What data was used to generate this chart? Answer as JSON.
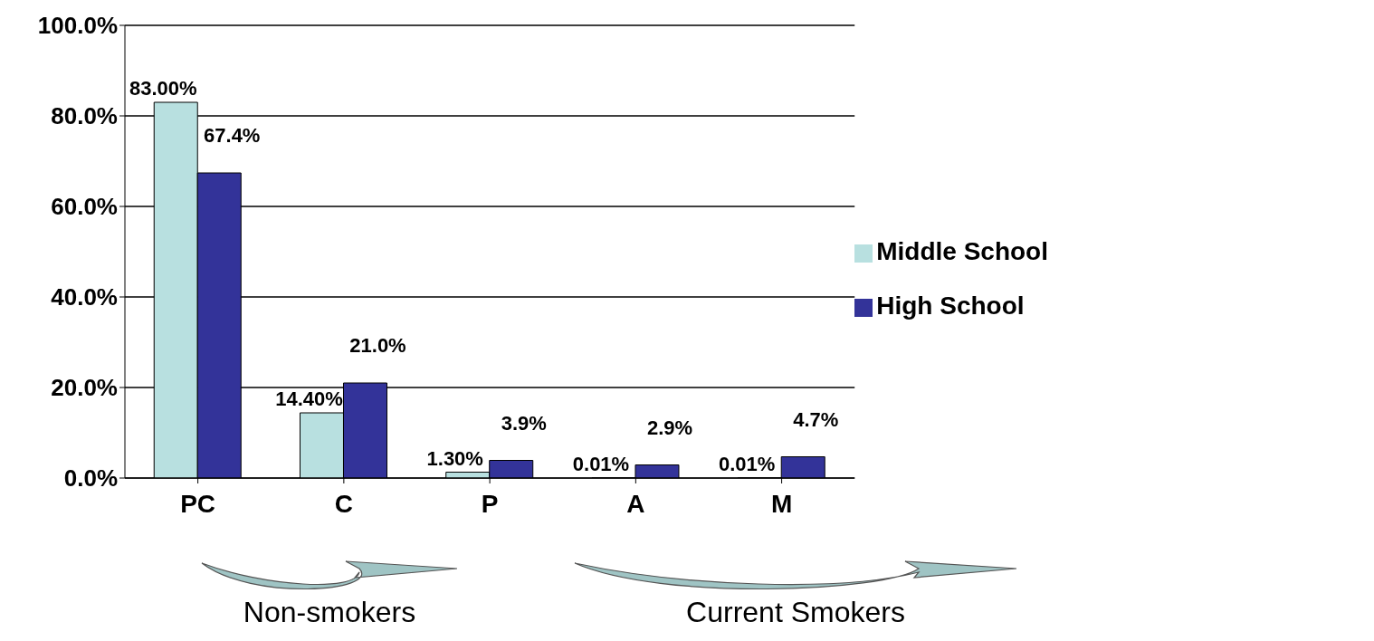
{
  "chart_data": {
    "type": "bar",
    "categories": [
      "PC",
      "C",
      "P",
      "A",
      "M"
    ],
    "series": [
      {
        "name": "Middle School",
        "color": "#b8e0e0",
        "values": [
          83.0,
          14.4,
          1.3,
          0.01,
          0.01
        ],
        "value_labels": [
          "83.00%",
          "14.40%",
          "1.30%",
          "0.01%",
          "0.01%"
        ]
      },
      {
        "name": "High School",
        "color": "#333399",
        "values": [
          67.4,
          21.0,
          3.9,
          2.9,
          4.7
        ],
        "value_labels": [
          "67.4%",
          "21.0%",
          "3.9%",
          "2.9%",
          "4.7%"
        ]
      }
    ],
    "ylim": [
      0,
      100
    ],
    "yticks": [
      {
        "value": 0,
        "label": "0.0%"
      },
      {
        "value": 20,
        "label": "20.0%"
      },
      {
        "value": 40,
        "label": "40.0%"
      },
      {
        "value": 60,
        "label": "60.0%"
      },
      {
        "value": 80,
        "label": "80.0%"
      },
      {
        "value": 100,
        "label": "100.0%"
      }
    ],
    "grid": "y",
    "legend": "right",
    "annotations": [
      "Non-smokers",
      "Current Smokers"
    ]
  }
}
